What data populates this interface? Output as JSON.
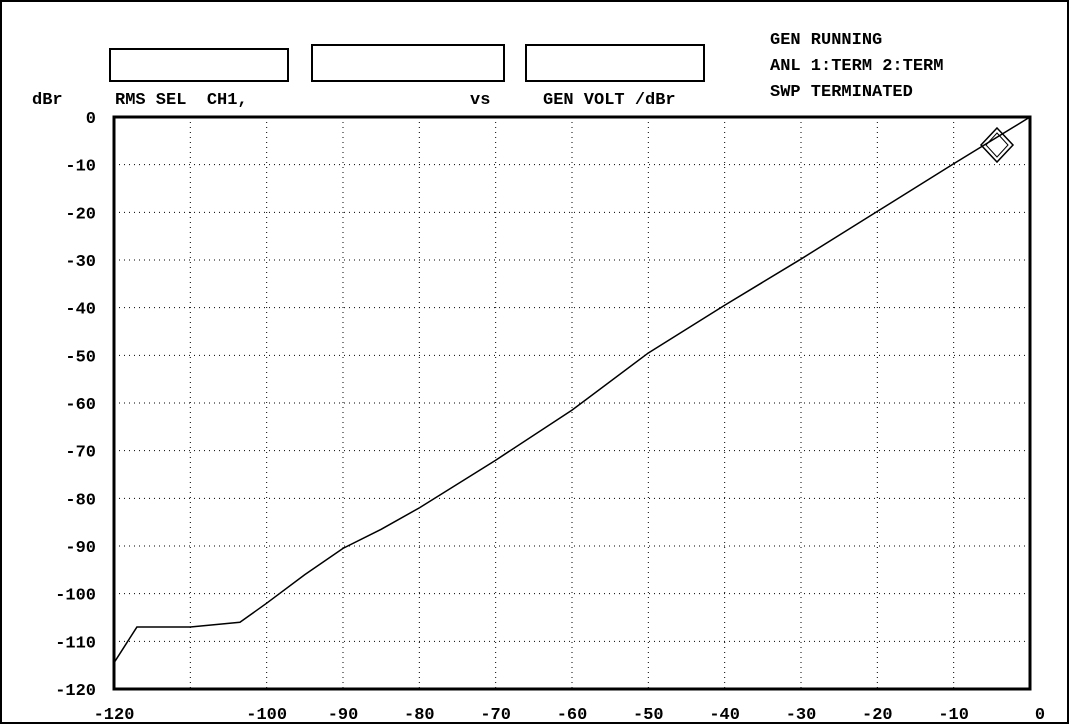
{
  "chart_data": {
    "type": "line",
    "y_label": "dBr",
    "title": "RMS SEL  CH1,",
    "annotations": [
      "vs"
    ],
    "x_label": "GEN VOLT /dBr",
    "status": [
      "GEN RUNNING",
      "ANL 1:TERM 2:TERM",
      "SWP TERMINATED"
    ],
    "x": [
      -120,
      -117,
      -110,
      -103.5,
      -100,
      -95,
      -90,
      -85,
      -80,
      -70,
      -60,
      -50,
      -40,
      -30,
      -20,
      -10,
      0
    ],
    "values": [
      -114.5,
      -107,
      -107,
      -106,
      -102,
      -96,
      -90.5,
      -86.5,
      -82,
      -72,
      -61.5,
      -49.5,
      -39.5,
      -29.8,
      -19.8,
      -9.8,
      0
    ],
    "color": "#000000",
    "xlim": [
      -120,
      0
    ],
    "xticks": [
      -120,
      {
        "value": -110,
        "label": null
      },
      -100,
      -90,
      -80,
      -70,
      -60,
      -50,
      -40,
      -30,
      -20,
      -10,
      0
    ],
    "ylim": [
      -120,
      0
    ],
    "yticks": [
      0,
      -10,
      -20,
      -30,
      -40,
      -50,
      -60,
      -70,
      -80,
      -90,
      -100,
      -110,
      -120
    ],
    "grid": true
  }
}
